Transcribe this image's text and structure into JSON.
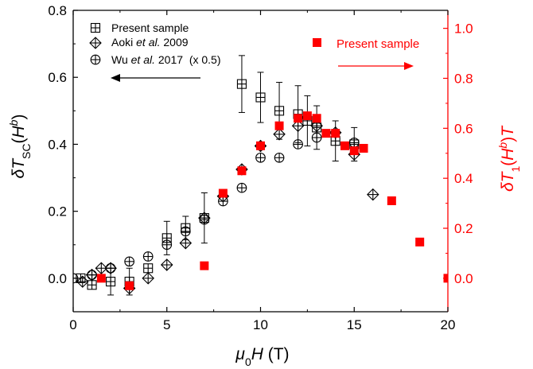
{
  "chart_data": {
    "type": "scatter",
    "xlabel": "μ0H (T)",
    "ylabel_left": "δTSC(Hb)",
    "ylabel_right": "δT1(Hb)T",
    "xlim": [
      0,
      20
    ],
    "ylim_left": [
      -0.1,
      0.8
    ],
    "ylim_right": [
      -0.134,
      1.072
    ],
    "xticks": [
      0,
      5,
      10,
      15,
      20
    ],
    "xtick_labels": [
      "0",
      "5",
      "10",
      "15",
      "20"
    ],
    "yticks_left": [
      0.0,
      0.2,
      0.4,
      0.6,
      0.8
    ],
    "ytick_labels_left": [
      "0.0",
      "0.2",
      "0.4",
      "0.6",
      "0.8"
    ],
    "yticks_right": [
      0.0,
      0.2,
      0.4,
      0.6,
      0.8,
      1.0
    ],
    "ytick_labels_right": [
      "0.0",
      "0.2",
      "0.4",
      "0.6",
      "0.8",
      "1.0"
    ],
    "right_axis_color": "#ff0000",
    "legend": {
      "placement": "top-left",
      "entries": [
        {
          "marker": "square-plus",
          "label": "Present sample"
        },
        {
          "marker": "diamond-plus",
          "label_prefix": "Aoki ",
          "label_italic": "et al.",
          "label_suffix": " 2009"
        },
        {
          "marker": "circle-plus",
          "label_prefix": "Wu ",
          "label_italic": "et al.",
          "label_suffix": " 2017  (x 0.5)"
        }
      ]
    },
    "annotations": {
      "left_arrow": "points to left axis",
      "right_label": "Present sample",
      "right_arrow": "points to right axis"
    },
    "series": [
      {
        "name": "Present sample",
        "marker": "square-plus",
        "axis": "left",
        "color": "#000000",
        "points": [
          {
            "x": 0.4,
            "y": 0.0
          },
          {
            "x": 1.0,
            "y": -0.02
          },
          {
            "x": 2.0,
            "y": -0.01,
            "err": 0.04
          },
          {
            "x": 3.0,
            "y": -0.01,
            "err": 0.04
          },
          {
            "x": 4.0,
            "y": 0.03
          },
          {
            "x": 5.0,
            "y": 0.12,
            "err": 0.05
          },
          {
            "x": 6.0,
            "y": 0.15,
            "err": 0.035
          },
          {
            "x": 7.0,
            "y": 0.18,
            "err": 0.075
          },
          {
            "x": 9.0,
            "y": 0.58,
            "err": 0.085
          },
          {
            "x": 10.0,
            "y": 0.54,
            "err": 0.075
          },
          {
            "x": 11.0,
            "y": 0.5,
            "err": 0.085
          },
          {
            "x": 12.0,
            "y": 0.49,
            "err": 0.085
          },
          {
            "x": 12.5,
            "y": 0.47,
            "err": 0.075
          },
          {
            "x": 13.0,
            "y": 0.45,
            "err": 0.065
          },
          {
            "x": 14.0,
            "y": 0.41,
            "err": 0.06
          },
          {
            "x": 15.0,
            "y": 0.4,
            "err": 0.05
          }
        ]
      },
      {
        "name": "Aoki et al. 2009",
        "marker": "diamond-plus",
        "axis": "left",
        "color": "#000000",
        "points": [
          {
            "x": 0.5,
            "y": -0.01
          },
          {
            "x": 1.0,
            "y": 0.01
          },
          {
            "x": 1.5,
            "y": 0.03
          },
          {
            "x": 2.0,
            "y": 0.03
          },
          {
            "x": 3.0,
            "y": -0.03
          },
          {
            "x": 4.0,
            "y": 0.0
          },
          {
            "x": 5.0,
            "y": 0.04
          },
          {
            "x": 6.0,
            "y": 0.105
          },
          {
            "x": 7.0,
            "y": 0.18
          },
          {
            "x": 8.0,
            "y": 0.245
          },
          {
            "x": 9.0,
            "y": 0.325
          },
          {
            "x": 10.0,
            "y": 0.395
          },
          {
            "x": 11.0,
            "y": 0.43
          },
          {
            "x": 12.0,
            "y": 0.455
          },
          {
            "x": 13.0,
            "y": 0.455
          },
          {
            "x": 14.0,
            "y": 0.435
          },
          {
            "x": 15.0,
            "y": 0.37
          },
          {
            "x": 16.0,
            "y": 0.25
          }
        ]
      },
      {
        "name": "Wu et al. 2017 (x 0.5)",
        "marker": "circle-plus",
        "axis": "left",
        "color": "#000000",
        "points": [
          {
            "x": 0.0,
            "y": 0.0
          },
          {
            "x": 1.0,
            "y": 0.01
          },
          {
            "x": 2.0,
            "y": 0.03
          },
          {
            "x": 3.0,
            "y": 0.05
          },
          {
            "x": 4.0,
            "y": 0.065
          },
          {
            "x": 5.0,
            "y": 0.1
          },
          {
            "x": 6.0,
            "y": 0.14
          },
          {
            "x": 7.0,
            "y": 0.175
          },
          {
            "x": 8.0,
            "y": 0.23
          },
          {
            "x": 9.0,
            "y": 0.27
          },
          {
            "x": 10.0,
            "y": 0.36
          },
          {
            "x": 11.0,
            "y": 0.36
          },
          {
            "x": 12.0,
            "y": 0.4
          },
          {
            "x": 13.0,
            "y": 0.42
          },
          {
            "x": 15.0,
            "y": 0.405
          }
        ]
      },
      {
        "name": "Present sample",
        "marker": "filled-square",
        "axis": "right",
        "color": "#ff0000",
        "points": [
          {
            "x": 1.5,
            "y": 0.0
          },
          {
            "x": 3.0,
            "y": -0.03
          },
          {
            "x": 7.0,
            "y": 0.05
          },
          {
            "x": 8.0,
            "y": 0.34
          },
          {
            "x": 9.0,
            "y": 0.43
          },
          {
            "x": 10.0,
            "y": 0.53
          },
          {
            "x": 11.0,
            "y": 0.61
          },
          {
            "x": 12.0,
            "y": 0.64
          },
          {
            "x": 12.5,
            "y": 0.65
          },
          {
            "x": 13.0,
            "y": 0.64
          },
          {
            "x": 13.5,
            "y": 0.58
          },
          {
            "x": 14.0,
            "y": 0.58
          },
          {
            "x": 14.5,
            "y": 0.53
          },
          {
            "x": 15.0,
            "y": 0.51
          },
          {
            "x": 15.5,
            "y": 0.52
          },
          {
            "x": 17.0,
            "y": 0.31
          },
          {
            "x": 18.5,
            "y": 0.145
          },
          {
            "x": 20.0,
            "y": 0.0
          }
        ]
      }
    ]
  }
}
